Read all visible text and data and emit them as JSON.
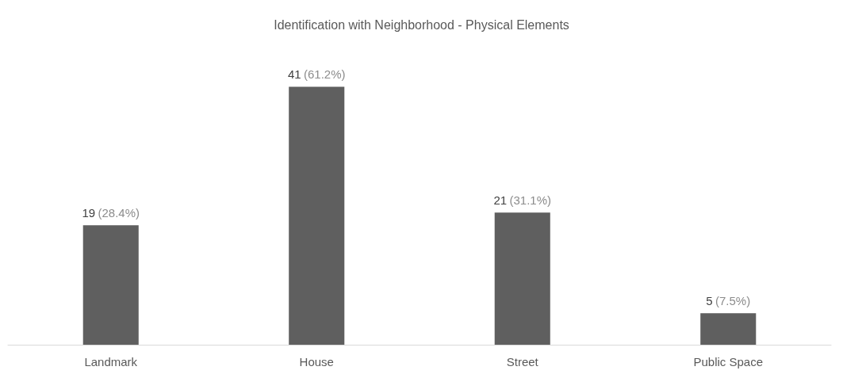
{
  "chart_data": {
    "type": "bar",
    "title": "Identification with Neighborhood - Physical Elements",
    "categories": [
      "Landmark",
      "House",
      "Street",
      "Public Space"
    ],
    "values": [
      19,
      41,
      21,
      5
    ],
    "value_labels": [
      "19 (28.4%)",
      "41 (61.2%)",
      "21 (31.1%)",
      "5 (7.5%)"
    ],
    "color": "#5f5f5f"
  }
}
